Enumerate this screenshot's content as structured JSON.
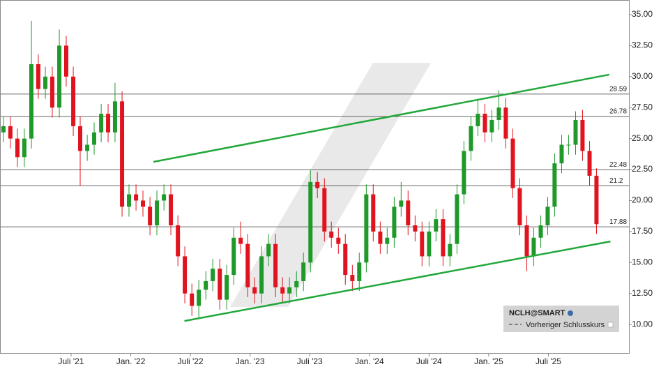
{
  "chart_data": {
    "type": "candlestick",
    "up_color": "#1f9a2a",
    "down_color": "#e0141e",
    "x": [
      2020.933,
      2020.991,
      2021.05,
      2021.108,
      2021.167,
      2021.225,
      2021.284,
      2021.342,
      2021.401,
      2021.459,
      2021.518,
      2021.576,
      2021.635,
      2021.693,
      2021.752,
      2021.81,
      2021.868,
      2021.927,
      2021.985,
      2022.044,
      2022.102,
      2022.161,
      2022.219,
      2022.278,
      2022.336,
      2022.395,
      2022.453,
      2022.512,
      2022.57,
      2022.629,
      2022.687,
      2022.746,
      2022.804,
      2022.863,
      2022.921,
      2022.98,
      2023.038,
      2023.096,
      2023.155,
      2023.213,
      2023.272,
      2023.33,
      2023.389,
      2023.447,
      2023.506,
      2023.564,
      2023.623,
      2023.681,
      2023.74,
      2023.798,
      2023.857,
      2023.915,
      2023.974,
      2024.032,
      2024.091,
      2024.149,
      2024.208,
      2024.266,
      2024.324,
      2024.383,
      2024.441,
      2024.5,
      2024.558,
      2024.617,
      2024.675,
      2024.734,
      2024.792,
      2024.851,
      2024.909,
      2024.968,
      2025.026,
      2025.085,
      2025.143,
      2025.202,
      2025.26,
      2025.319,
      2025.377,
      2025.436,
      2025.494,
      2025.552,
      2025.611,
      2025.669,
      2025.728,
      2025.786,
      2025.845,
      2025.903
    ],
    "open": [
      25.5,
      26,
      25,
      23.5,
      25,
      31,
      29,
      30,
      27.5,
      32.5,
      30,
      26,
      24,
      24.5,
      25.5,
      27,
      25.5,
      28,
      19.5,
      20.5,
      20,
      19.5,
      18,
      20,
      20.5,
      18,
      15.5,
      12.5,
      11.5,
      12.8,
      13.5,
      14.5,
      12,
      14,
      17,
      16.5,
      13,
      12.5,
      15.5,
      16.5,
      13,
      12.5,
      13,
      13.5,
      15,
      21.5,
      21,
      17.5,
      17,
      16.5,
      14,
      13.5,
      15,
      20.5,
      17.5,
      16.5,
      17,
      19.5,
      20,
      18,
      17.5,
      15.5,
      17.5,
      18.5,
      15.5,
      16.5,
      20.5,
      24,
      26,
      27,
      25.5,
      26.5,
      27.5,
      25,
      21,
      18,
      15.5,
      17,
      18,
      19.5,
      23,
      24.5,
      24.5,
      26.5,
      24,
      22
    ],
    "high": [
      26.8,
      26.8,
      25.8,
      25.8,
      34.5,
      31.8,
      30.8,
      30.8,
      33.8,
      33.3,
      30.8,
      26.8,
      25.3,
      26.3,
      27.8,
      27.8,
      29.5,
      28.8,
      21.3,
      21.3,
      20.8,
      20.3,
      20.8,
      21.3,
      21.3,
      18.8,
      16.3,
      13.3,
      13.6,
      14.3,
      15.3,
      15.3,
      14.8,
      17.8,
      18.3,
      17.3,
      13.8,
      16.3,
      17.3,
      17.3,
      13.8,
      13.8,
      14.3,
      15.8,
      22.5,
      22.3,
      21.8,
      18.3,
      17.8,
      17.3,
      14.8,
      15.8,
      21.3,
      21.3,
      18.3,
      17.8,
      20.3,
      21.5,
      20.8,
      18.8,
      18.3,
      18.3,
      19.3,
      19.3,
      17.3,
      21.3,
      24.8,
      26.8,
      28.2,
      27.8,
      27.3,
      28.9,
      28.3,
      25.8,
      21.8,
      18.8,
      17.8,
      18.8,
      20.3,
      23.8,
      25.3,
      25.3,
      27.2,
      27.3,
      24.8,
      22.6
    ],
    "low": [
      24.7,
      24.2,
      22.7,
      22.7,
      24.2,
      28.2,
      28.2,
      26.7,
      26.7,
      29.2,
      25.2,
      21.2,
      23.2,
      23.7,
      24.7,
      24.7,
      24.7,
      18.7,
      18.7,
      19.2,
      18.7,
      17.2,
      17.2,
      19.2,
      17.2,
      14.7,
      11.7,
      10.7,
      10.5,
      12.0,
      12.7,
      11.2,
      11.2,
      13.2,
      15.7,
      12.2,
      11.7,
      11.7,
      14.7,
      12.2,
      11.7,
      11.7,
      12.2,
      12.7,
      14.2,
      20.2,
      16.7,
      16.2,
      15.7,
      13.2,
      12.7,
      12.7,
      14.2,
      16.7,
      15.7,
      15.7,
      16.2,
      18.7,
      17.2,
      16.7,
      14.7,
      14.7,
      16.7,
      14.7,
      14.7,
      15.7,
      19.7,
      23.2,
      25.2,
      24.7,
      24.7,
      25.7,
      24.2,
      20.2,
      17.2,
      14.3,
      14.7,
      16.2,
      17.2,
      18.7,
      22.2,
      23.7,
      23.7,
      23.2,
      21.2,
      17.3
    ],
    "close": [
      26,
      25,
      23.5,
      25,
      31,
      29,
      30,
      27.5,
      32.5,
      30,
      26,
      24,
      24.5,
      25.5,
      27,
      25.5,
      28,
      19.5,
      20.5,
      20,
      19.5,
      18,
      20,
      20.5,
      18,
      15.5,
      12.5,
      11.5,
      12.8,
      13.5,
      14.5,
      12,
      14,
      17,
      16.5,
      13,
      12.5,
      15.5,
      16.5,
      13,
      12.5,
      13,
      13.5,
      15,
      21.5,
      21,
      17.5,
      17,
      16.5,
      14,
      13.5,
      15,
      20.5,
      17.5,
      16.5,
      17,
      19.5,
      20,
      18,
      17.5,
      15.5,
      17.5,
      18.5,
      15.5,
      16.5,
      20.5,
      24,
      26,
      27,
      25.5,
      26.5,
      27.5,
      25,
      21,
      18,
      15.5,
      17,
      18,
      19.5,
      23,
      24.5,
      24.5,
      26.5,
      24,
      22,
      18.1
    ],
    "xlim": [
      2020.904,
      2026.175
    ],
    "xticks": [
      {
        "value": 2021.5,
        "label": "Juli '21"
      },
      {
        "value": 2022.0,
        "label": "Jan. '22"
      },
      {
        "value": 2022.5,
        "label": "Juli '22"
      },
      {
        "value": 2023.0,
        "label": "Jan. '23"
      },
      {
        "value": 2023.5,
        "label": "Juli '23"
      },
      {
        "value": 2024.0,
        "label": "Jan. '24"
      },
      {
        "value": 2024.5,
        "label": "Juli '24"
      },
      {
        "value": 2025.0,
        "label": "Jan. '25"
      },
      {
        "value": 2025.5,
        "label": "Juli '25"
      }
    ],
    "ylim": [
      7.7,
      36.18
    ],
    "yticks": [
      {
        "value": 10,
        "label": "10.00"
      },
      {
        "value": 12.5,
        "label": "12.50"
      },
      {
        "value": 15,
        "label": "15.00"
      },
      {
        "value": 17.5,
        "label": "17.50"
      },
      {
        "value": 20,
        "label": "20.00"
      },
      {
        "value": 22.5,
        "label": "22.50"
      },
      {
        "value": 25,
        "label": "25.00"
      },
      {
        "value": 27.5,
        "label": "27.50"
      },
      {
        "value": 30,
        "label": "30.00"
      },
      {
        "value": 32.5,
        "label": "32.50"
      },
      {
        "value": 35,
        "label": "35.00"
      }
    ],
    "levels": [
      28.59,
      26.78,
      22.48,
      21.2,
      17.88
    ],
    "trendlines": [
      {
        "color": "#22a83a",
        "x": [
          2022.19,
          2026.01
        ],
        "y": [
          23.12,
          30.16
        ]
      },
      {
        "color": "#22a83a",
        "x": [
          2022.45,
          2026.02
        ],
        "y": [
          10.28,
          16.7
        ]
      }
    ],
    "legend": {
      "symbol": "NCLH@SMART",
      "items": [
        "Vorheriger Schlusskurs"
      ]
    }
  }
}
